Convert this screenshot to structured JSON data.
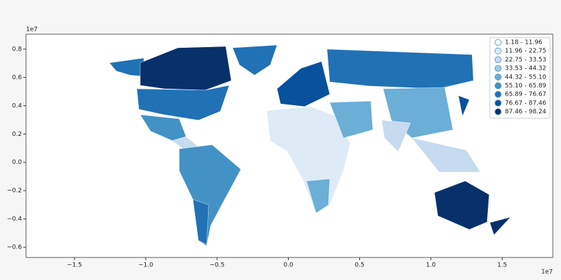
{
  "chart_data": {
    "type": "choropleth",
    "x_offset_label": "1e7",
    "y_offset_label": "1e7",
    "xlim": [
      -1.84,
      1.855
    ],
    "ylim": [
      -0.672,
      0.906
    ],
    "xticks": [
      {
        "value": -1.5,
        "label": "−1.5"
      },
      {
        "value": -1,
        "label": "−1.0"
      },
      {
        "value": -0.5,
        "label": "−0.5"
      },
      {
        "value": 0,
        "label": "0.0"
      },
      0.5,
      {
        "value": 1,
        "label": "1.0"
      },
      1.5
    ],
    "yticks": [
      {
        "value": -0.6,
        "label": "−0.6"
      },
      {
        "value": -0.4,
        "label": "−0.4"
      },
      {
        "value": -0.2,
        "label": "−0.2"
      },
      {
        "value": 0,
        "label": "0.0"
      },
      0.2,
      0.4,
      0.6,
      0.8
    ],
    "legend_loc": "upper right",
    "classes": [
      {
        "name": "1.18 - 11.96",
        "color": "#f7fbff"
      },
      {
        "name": "11.96 - 22.75",
        "color": "#deebf7"
      },
      {
        "name": "22.75 - 33.53",
        "color": "#c6dbef"
      },
      {
        "name": "33.53 - 44.32",
        "color": "#9ecae1"
      },
      {
        "name": "44.32 - 55.10",
        "color": "#6baed6"
      },
      {
        "name": "55.10 - 65.89",
        "color": "#4292c6"
      },
      {
        "name": "65.89 - 76.67",
        "color": "#2171b5"
      },
      {
        "name": "76.67 - 87.46",
        "color": "#08519c"
      },
      {
        "name": "87.46 - 98.24",
        "color": "#08306b"
      }
    ]
  }
}
